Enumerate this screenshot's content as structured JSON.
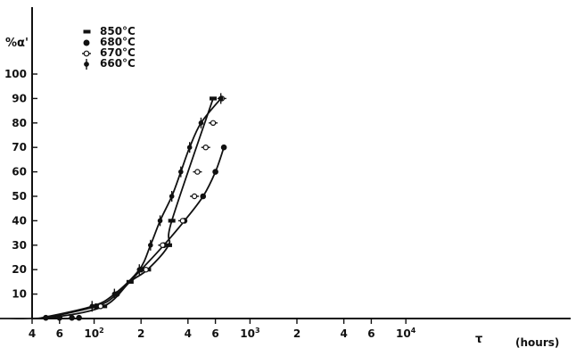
{
  "chart_data": {
    "type": "scatter",
    "xscale": "log",
    "xlim": [
      4,
      10000
    ],
    "ylim": [
      0,
      100
    ],
    "ylabel": "%α'",
    "xlabel": "τ",
    "xlabel_unit": "(hours)",
    "grid": false,
    "legend_position": "top-left",
    "y_ticks": [
      10,
      20,
      30,
      40,
      50,
      60,
      70,
      80,
      90,
      100
    ],
    "x_ticks": [
      {
        "value": 4,
        "label": "4"
      },
      {
        "value": 6,
        "label": "6"
      },
      {
        "value": 10,
        "label": "10",
        "sup": "2"
      },
      {
        "value": 20,
        "label": "2"
      },
      {
        "value": 40,
        "label": "4"
      },
      {
        "value": 60,
        "label": "6"
      },
      {
        "value": 100,
        "label": "10",
        "sup": "3"
      },
      {
        "value": 200,
        "label": "2"
      },
      {
        "value": 400,
        "label": "4"
      },
      {
        "value": 600,
        "label": "6"
      },
      {
        "value": 1000,
        "label": "10",
        "sup": "4"
      }
    ],
    "series": [
      {
        "name": "850°C",
        "marker": "dash",
        "points": [
          [
            5.4,
            0.5
          ],
          [
            11.5,
            5
          ],
          [
            17,
            15
          ],
          [
            22,
            20
          ],
          [
            30,
            30
          ],
          [
            31.5,
            40
          ],
          [
            58,
            90
          ]
        ]
      },
      {
        "name": "680°C",
        "marker": "dot",
        "points": [
          [
            10.3,
            5
          ],
          [
            14,
            10
          ],
          [
            20,
            20
          ],
          [
            28,
            30
          ],
          [
            38,
            40
          ],
          [
            50,
            50
          ],
          [
            60,
            60
          ],
          [
            68,
            70
          ]
        ]
      },
      {
        "name": "670°C",
        "marker": "dash-circle",
        "points": [
          [
            11,
            5
          ],
          [
            21.5,
            20
          ],
          [
            27.5,
            30
          ],
          [
            37,
            40
          ],
          [
            44,
            50
          ],
          [
            46,
            60
          ],
          [
            52,
            70
          ],
          [
            58,
            80
          ],
          [
            66,
            90
          ]
        ]
      },
      {
        "name": "660°C",
        "marker": "vbar",
        "points": [
          [
            9.7,
            5
          ],
          [
            13.5,
            10
          ],
          [
            19.5,
            20
          ],
          [
            23,
            30
          ],
          [
            26.5,
            40
          ],
          [
            31.5,
            50
          ],
          [
            36,
            60
          ],
          [
            41,
            70
          ],
          [
            48.5,
            80
          ],
          [
            65,
            90
          ]
        ]
      }
    ]
  }
}
